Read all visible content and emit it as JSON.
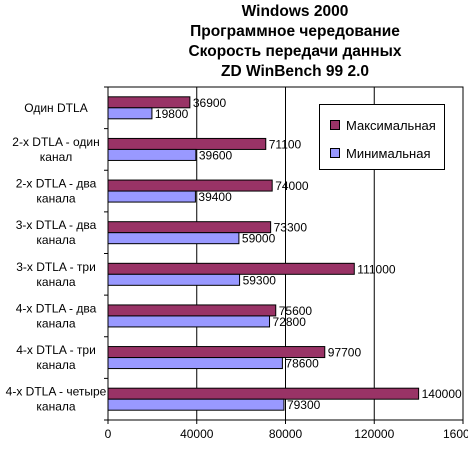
{
  "title_lines": [
    "Windows 2000",
    "Программное чередование",
    "Скорость передачи данных",
    "ZD WinBench 99 2.0"
  ],
  "colors": {
    "max": "#993366",
    "min": "#9999ff",
    "plot_bg": "#ffffff",
    "grid": "#000000"
  },
  "chart_data": {
    "type": "bar",
    "orientation": "horizontal",
    "title": "Windows 2000 / Программное чередование / Скорость передачи данных / ZD WinBench 99 2.0",
    "categories": [
      [
        "Один DTLA"
      ],
      [
        "2-х DTLA - один",
        "канал"
      ],
      [
        "2-х DTLA - два",
        "канала"
      ],
      [
        "3-х DTLA - два",
        "канала"
      ],
      [
        "3-х DTLA - три",
        "канала"
      ],
      [
        "4-х DTLA - два",
        "канала"
      ],
      [
        "4-х DTLA - три",
        "канала"
      ],
      [
        "4-х DTLA - четыре",
        "канала"
      ]
    ],
    "series": [
      {
        "name": "Максимальная",
        "values": [
          36900,
          71100,
          74000,
          73300,
          111000,
          75600,
          97700,
          140000
        ]
      },
      {
        "name": "Минимальная",
        "values": [
          19800,
          39600,
          39400,
          59000,
          59300,
          72800,
          78600,
          79300
        ]
      }
    ],
    "xlim": [
      0,
      160000
    ],
    "xticks": [
      0,
      40000,
      80000,
      120000,
      160000
    ],
    "grid": "vertical major gridlines",
    "legend_position": "right, upper"
  }
}
